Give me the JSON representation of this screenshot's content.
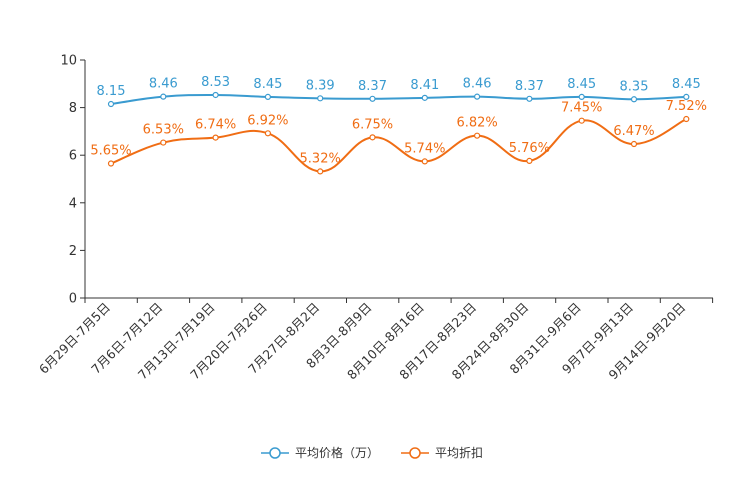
{
  "chart_data": {
    "type": "line",
    "categories": [
      "6月29日-7月5日",
      "7月6日-7月12日",
      "7月13日-7月19日",
      "7月20日-7月26日",
      "7月27日-8月2日",
      "8月3日-8月9日",
      "8月10日-8月16日",
      "8月17日-8月23日",
      "8月24日-8月30日",
      "8月31日-9月6日",
      "9月7日-9月13日",
      "9月14日-9月20日"
    ],
    "ylim": [
      0,
      10
    ],
    "yticks": [
      0,
      2,
      4,
      6,
      8,
      10
    ],
    "series": [
      {
        "name": "平均价格（万）",
        "color": "#3a9bd0",
        "values": [
          8.15,
          8.46,
          8.53,
          8.45,
          8.39,
          8.37,
          8.41,
          8.46,
          8.37,
          8.45,
          8.35,
          8.45
        ],
        "labels": [
          "8.15",
          "8.46",
          "8.53",
          "8.45",
          "8.39",
          "8.37",
          "8.41",
          "8.46",
          "8.37",
          "8.45",
          "8.35",
          "8.45"
        ]
      },
      {
        "name": "平均折扣",
        "color": "#f06d14",
        "values": [
          5.65,
          6.53,
          6.74,
          6.92,
          5.32,
          6.75,
          5.74,
          6.82,
          5.76,
          7.45,
          6.47,
          7.52
        ],
        "labels": [
          "5.65%",
          "6.53%",
          "6.74%",
          "6.92%",
          "5.32%",
          "6.75%",
          "5.74%",
          "6.82%",
          "5.76%",
          "7.45%",
          "6.47%",
          "7.52%"
        ]
      }
    ]
  }
}
